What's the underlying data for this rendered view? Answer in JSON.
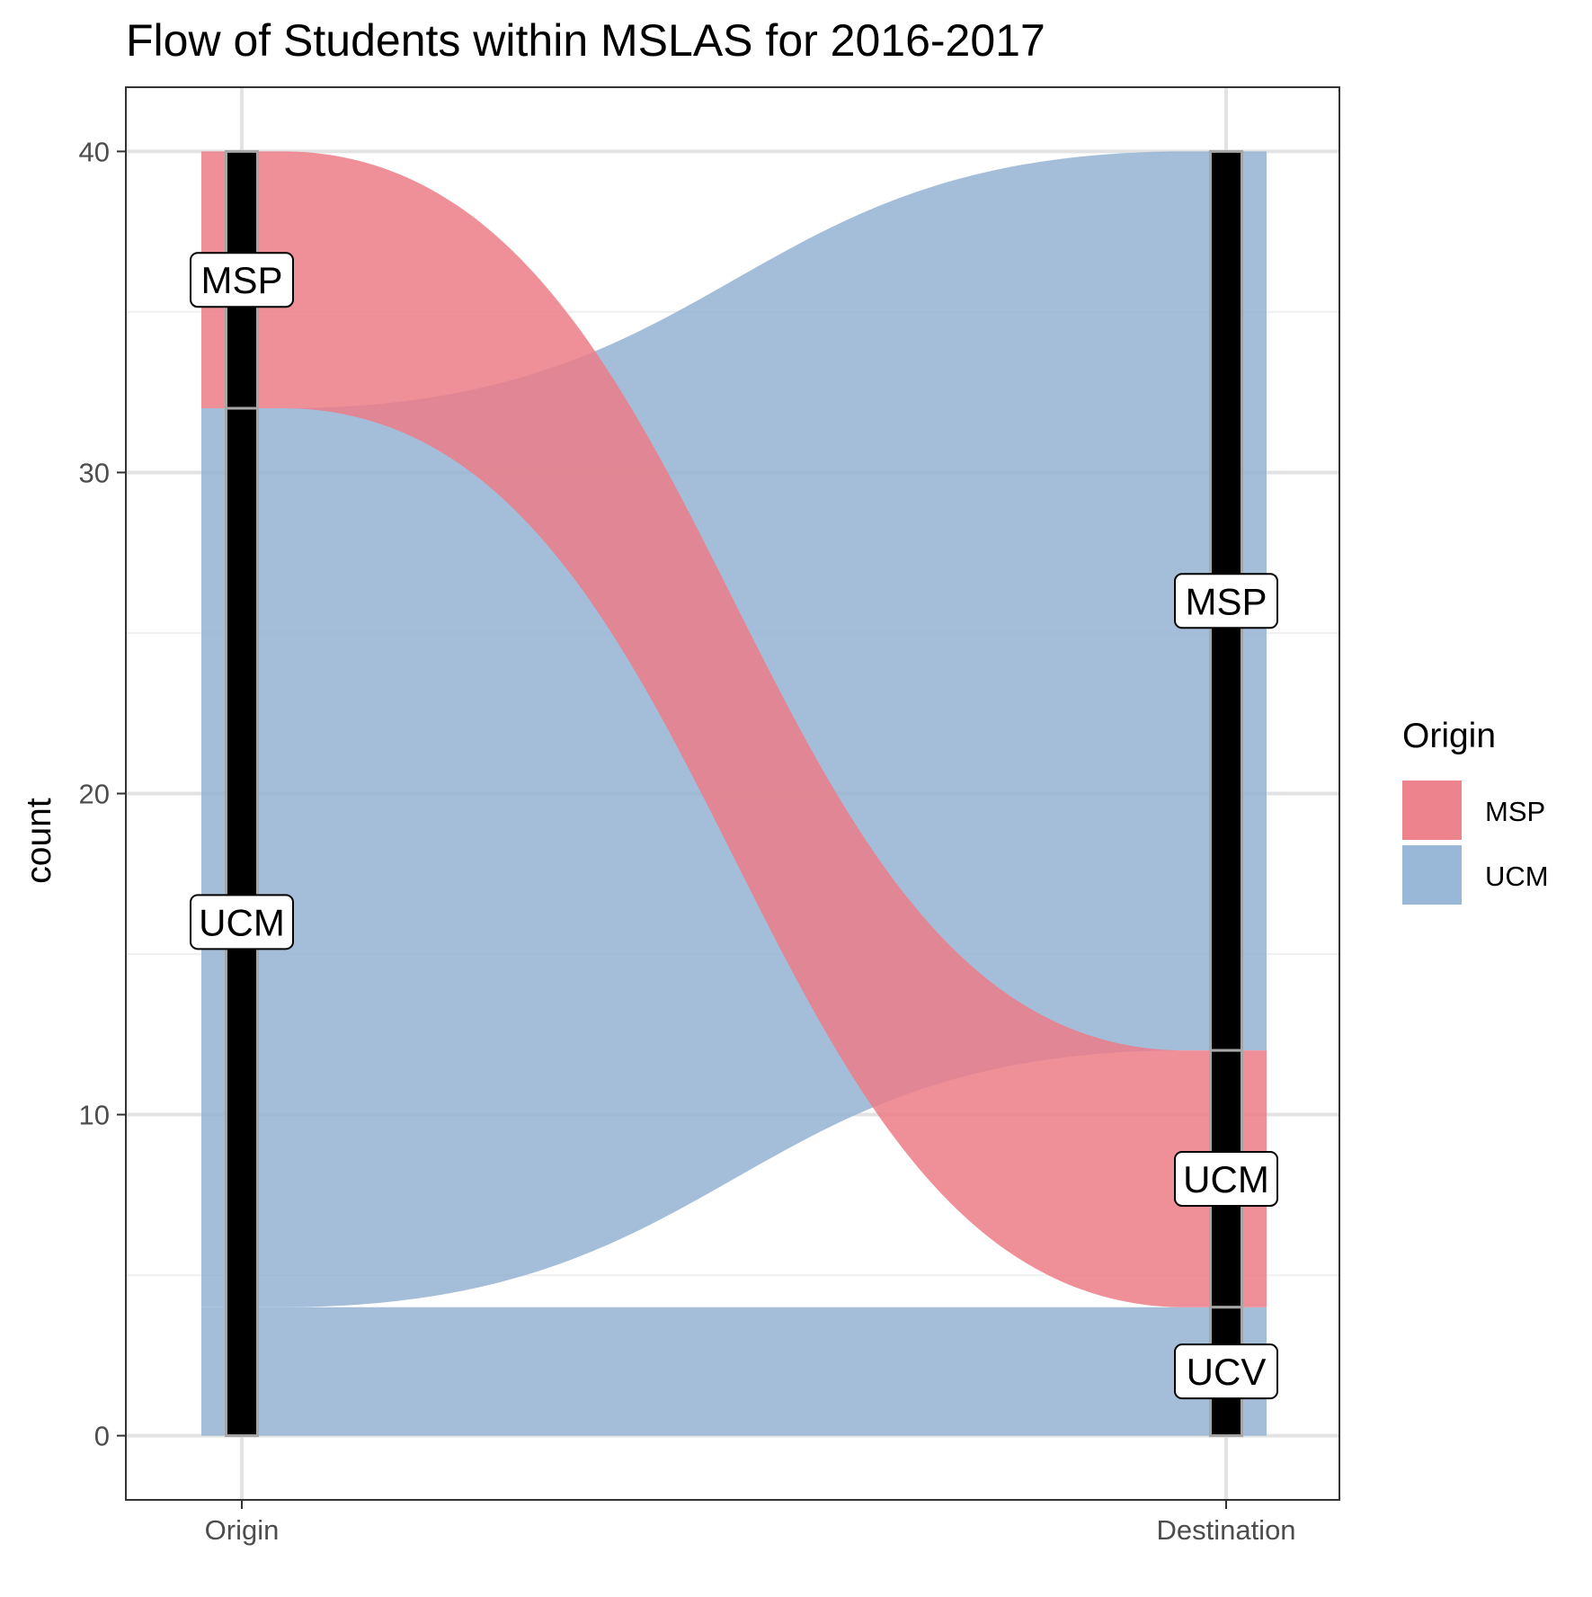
{
  "chart_data": {
    "type": "alluvial",
    "title": "Flow of Students within MSLAS for 2016-2017",
    "xlabel": "",
    "ylabel": "count",
    "ylim": [
      -2,
      42
    ],
    "yticks": [
      0,
      10,
      20,
      30,
      40
    ],
    "axes": [
      "Origin",
      "Destination"
    ],
    "grid": true,
    "legend": {
      "title": "Origin",
      "position": "right",
      "entries": [
        {
          "label": "MSP",
          "color": "#ec7c87"
        },
        {
          "label": "UCM",
          "color": "#94b3d4"
        }
      ]
    },
    "strata": [
      {
        "axis": "Origin",
        "label": "MSP",
        "ymin": 32,
        "ymax": 40
      },
      {
        "axis": "Origin",
        "label": "UCM",
        "ymin": 0,
        "ymax": 32
      },
      {
        "axis": "Destination",
        "label": "MSP",
        "ymin": 12,
        "ymax": 40
      },
      {
        "axis": "Destination",
        "label": "UCM",
        "ymin": 4,
        "ymax": 12
      },
      {
        "axis": "Destination",
        "label": "UCV",
        "ymin": 0,
        "ymax": 4
      }
    ],
    "flows": [
      {
        "origin": "MSP",
        "destination": "UCM",
        "count": 8,
        "fill": "MSP"
      },
      {
        "origin": "UCM",
        "destination": "MSP",
        "count": 28,
        "fill": "UCM"
      },
      {
        "origin": "UCM",
        "destination": "UCV",
        "count": 4,
        "fill": "UCM"
      }
    ]
  },
  "colors": {
    "msp_flow": "#ec7c87",
    "ucm_flow": "#94b3d4",
    "stratum_fill": "#000000",
    "stratum_border": "#a6a6a6",
    "grid_major": "#e3e3e3",
    "grid_minor": "#f0f0f0"
  }
}
